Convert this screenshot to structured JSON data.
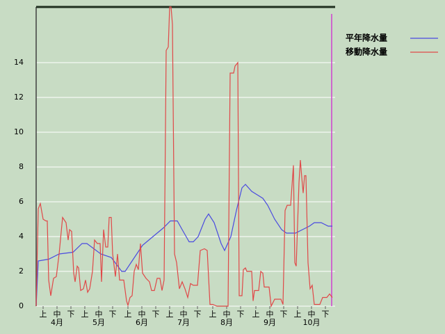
{
  "chart_data": {
    "type": "line",
    "xlim": [
      0,
      215
    ],
    "xticks": [
      {
        "value": 5,
        "label": "上"
      },
      {
        "value": 15,
        "label": "中"
      },
      {
        "value": 25,
        "label": "下"
      },
      {
        "value": 35,
        "label": "上"
      },
      {
        "value": 45,
        "label": "中"
      },
      {
        "value": 55,
        "label": "下"
      },
      {
        "value": 66,
        "label": "上"
      },
      {
        "value": 76,
        "label": "中"
      },
      {
        "value": 86,
        "label": "下"
      },
      {
        "value": 96,
        "label": "上"
      },
      {
        "value": 106,
        "label": "中"
      },
      {
        "value": 116,
        "label": "下"
      },
      {
        "value": 127,
        "label": "上"
      },
      {
        "value": 137,
        "label": "中"
      },
      {
        "value": 147,
        "label": "下"
      },
      {
        "value": 158,
        "label": "上"
      },
      {
        "value": 168,
        "label": "中"
      },
      {
        "value": 178,
        "label": "下"
      },
      {
        "value": 188,
        "label": "上"
      },
      {
        "value": 198,
        "label": "中"
      },
      {
        "value": 208,
        "label": "下"
      }
    ],
    "month_ticks": [
      {
        "value": 15,
        "label": "4月"
      },
      {
        "value": 45,
        "label": "5月"
      },
      {
        "value": 76,
        "label": "6月"
      },
      {
        "value": 106,
        "label": "7月"
      },
      {
        "value": 137,
        "label": "8月"
      },
      {
        "value": 168,
        "label": "9月"
      },
      {
        "value": 198,
        "label": "10月"
      }
    ],
    "ylim": [
      0,
      17.2
    ],
    "yticks": [
      0,
      2,
      4,
      6,
      8,
      10,
      12,
      14
    ],
    "grid": true,
    "legend": "top-right",
    "current_day": 212.5,
    "current_day_color": "#d040d0",
    "series": [
      {
        "name": "平年降水量",
        "color": "#4a4ae0",
        "x": [
          0,
          1.5,
          9,
          16.5,
          26.5,
          33,
          36.5,
          46.5,
          54,
          61.5,
          64,
          69,
          76.5,
          84,
          91.5,
          96.5,
          101.5,
          105,
          110,
          113,
          116.5,
          121.5,
          124,
          128,
          133,
          135.5,
          140,
          144,
          148,
          150.5,
          155,
          159,
          163,
          166.5,
          171.5,
          176.5,
          180,
          186.5,
          191.5,
          196.5,
          200,
          205,
          210,
          213
        ],
        "values": [
          0,
          2.6,
          2.7,
          3.0,
          3.1,
          3.6,
          3.6,
          3.0,
          2.8,
          2.0,
          2.0,
          2.6,
          3.5,
          4.0,
          4.5,
          4.9,
          4.9,
          4.4,
          3.7,
          3.7,
          4.0,
          5.0,
          5.3,
          4.8,
          3.6,
          3.2,
          4.0,
          5.5,
          6.8,
          7.0,
          6.6,
          6.4,
          6.2,
          5.8,
          5.0,
          4.4,
          4.2,
          4.2,
          4.4,
          4.6,
          4.8,
          4.8,
          4.6,
          4.6
        ]
      },
      {
        "name": "移動降水量",
        "color": "#e04848",
        "x": [
          0,
          1.5,
          3,
          5,
          7,
          8,
          9,
          10.5,
          12.5,
          14.5,
          16.5,
          19,
          21.5,
          23,
          24,
          25.5,
          27,
          28,
          29.5,
          30.5,
          32,
          34,
          35.5,
          37,
          38.5,
          40.5,
          42,
          44,
          46,
          47,
          48.5,
          50,
          51.5,
          52.5,
          54,
          55,
          57,
          58.5,
          60,
          63,
          65,
          66,
          67.5,
          69,
          70.5,
          72,
          73.5,
          75,
          76.5,
          79,
          81.5,
          83,
          85,
          87,
          89,
          90.5,
          92,
          93.5,
          95,
          96,
          97,
          98,
          99.5,
          101,
          103,
          105,
          107,
          109,
          111,
          113,
          116,
          118,
          121,
          123,
          125,
          127,
          130,
          138,
          139.5,
          142,
          143,
          145,
          146,
          148,
          149,
          150.5,
          151.5,
          155,
          156,
          157,
          160,
          161.5,
          163,
          164,
          167.5,
          169,
          171.5,
          174,
          176,
          177.5,
          179,
          180.5,
          183,
          185,
          186,
          187,
          189,
          190,
          191,
          192,
          193,
          194,
          195.5,
          197,
          198.5,
          200,
          204,
          206,
          209,
          211,
          213
        ],
        "values": [
          0,
          5.6,
          5.9,
          5.0,
          4.9,
          4.9,
          1.5,
          0.6,
          1.6,
          1.7,
          3.0,
          5.1,
          4.8,
          3.8,
          4.4,
          4.3,
          1.9,
          1.4,
          2.3,
          2.2,
          0.9,
          1.0,
          1.5,
          0.8,
          1.0,
          2.0,
          3.8,
          3.6,
          3.6,
          1.4,
          4.4,
          3.4,
          3.4,
          5.1,
          5.1,
          3.0,
          1.7,
          3.0,
          1.5,
          1.5,
          0.3,
          0.05,
          0.5,
          0.6,
          2.0,
          2.4,
          2.1,
          3.6,
          1.9,
          1.6,
          1.4,
          0.9,
          0.9,
          1.6,
          1.6,
          0.9,
          1.5,
          14.7,
          14.9,
          17.2,
          17.2,
          16.2,
          3.0,
          2.5,
          1.0,
          1.4,
          1.0,
          0.5,
          1.3,
          1.2,
          1.2,
          3.2,
          3.3,
          3.2,
          0.1,
          0.1,
          0,
          0,
          13.4,
          13.4,
          13.8,
          14.0,
          0.6,
          0.6,
          2.1,
          2.2,
          2.0,
          2.0,
          0.3,
          0.9,
          0.9,
          2.0,
          1.9,
          1.1,
          1.1,
          0,
          0.4,
          0.4,
          0.4,
          0.1,
          5.5,
          5.8,
          5.8,
          8.1,
          2.5,
          2.3,
          7.1,
          8.4,
          7.4,
          6.5,
          7.5,
          7.5,
          2.5,
          1.0,
          1.2,
          0.1,
          0.1,
          0.5,
          0.5,
          0.7,
          0.5
        ]
      }
    ]
  }
}
